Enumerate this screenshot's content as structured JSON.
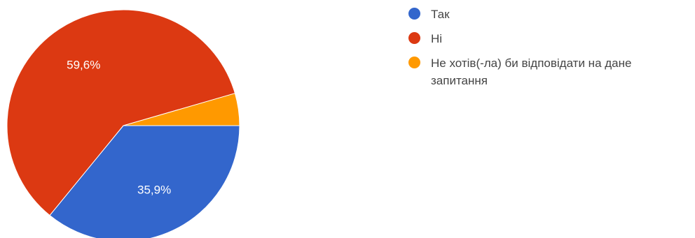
{
  "chart_data": {
    "type": "pie",
    "title": "",
    "slices": [
      {
        "label": "Так",
        "value": 35.9,
        "value_label": "35,9%",
        "color": "#3366cc"
      },
      {
        "label": "Ні",
        "value": 59.6,
        "value_label": "59,6%",
        "color": "#dc3912"
      },
      {
        "label": "Не хотів(-ла) би відповідати на дане запитання",
        "value": 4.5,
        "value_label": "",
        "color": "#ff9900"
      }
    ],
    "start": "3 o'clock",
    "direction": "clockwise",
    "legend_position": "right"
  },
  "legend": {
    "items": [
      {
        "label": "Так",
        "color": "#3366cc"
      },
      {
        "label": "Ні",
        "color": "#dc3912"
      },
      {
        "label": "Не хотів(-ла) би відповідати на дане запитання",
        "color": "#ff9900"
      }
    ]
  }
}
